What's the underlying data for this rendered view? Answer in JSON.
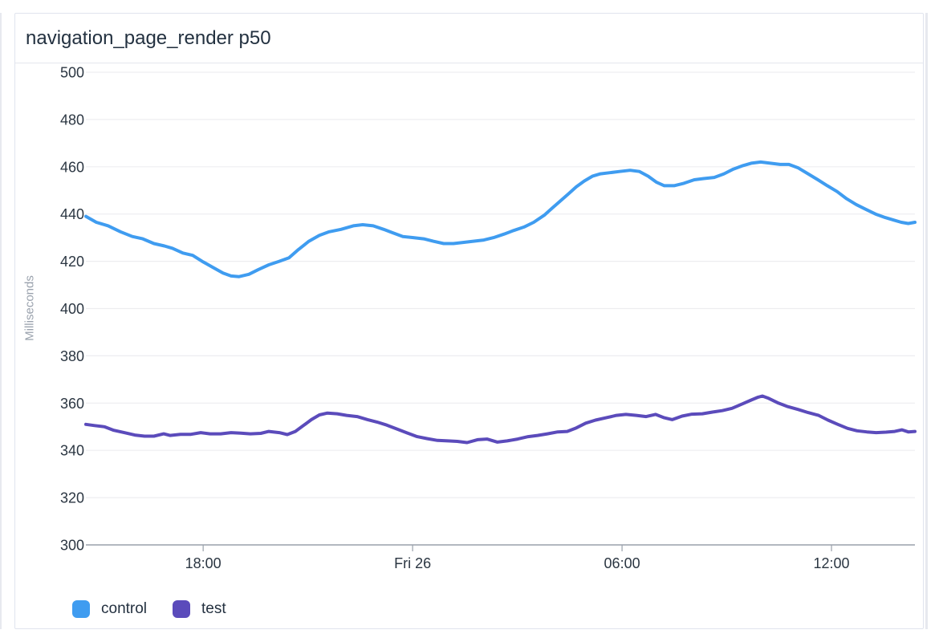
{
  "card": {
    "title": "navigation_page_render p50"
  },
  "legend": [
    {
      "label": "control",
      "color": "#3f9cf0"
    },
    {
      "label": "test",
      "color": "#5b4bbb"
    }
  ],
  "chart_data": {
    "type": "line",
    "title": "navigation_page_render p50",
    "xlabel": "",
    "ylabel": "Milliseconds",
    "ylim": [
      300,
      500
    ],
    "y_ticks": [
      300,
      320,
      340,
      360,
      380,
      400,
      420,
      440,
      460,
      480,
      500
    ],
    "x_range_hours": [
      0,
      23.75
    ],
    "x_ticks": [
      {
        "h": 3.36,
        "label": "18:00"
      },
      {
        "h": 9.36,
        "label": "Fri 26"
      },
      {
        "h": 15.36,
        "label": "06:00"
      },
      {
        "h": 21.36,
        "label": "12:00"
      }
    ],
    "grid": true,
    "legend_position": "bottom-left",
    "grid_color": "#ededf0",
    "axis_color": "#9aa1ab",
    "tick_color": "#2b3642",
    "series": [
      {
        "name": "control",
        "color": "#3f9cf0",
        "points": [
          [
            0,
            439
          ],
          [
            0.3,
            436.5
          ],
          [
            0.64,
            435
          ],
          [
            0.99,
            432.5
          ],
          [
            1.33,
            430.5
          ],
          [
            1.63,
            429.5
          ],
          [
            1.95,
            427.5
          ],
          [
            2.25,
            426.5
          ],
          [
            2.48,
            425.5
          ],
          [
            2.78,
            423.5
          ],
          [
            3.06,
            422.5
          ],
          [
            3.33,
            420
          ],
          [
            3.63,
            417.5
          ],
          [
            3.93,
            415
          ],
          [
            4.16,
            413.8
          ],
          [
            4.39,
            413.5
          ],
          [
            4.67,
            414.5
          ],
          [
            4.94,
            416.5
          ],
          [
            5.24,
            418.5
          ],
          [
            5.54,
            420
          ],
          [
            5.82,
            421.5
          ],
          [
            6.09,
            425
          ],
          [
            6.39,
            428.5
          ],
          [
            6.69,
            431
          ],
          [
            6.97,
            432.5
          ],
          [
            7.31,
            433.5
          ],
          [
            7.66,
            435
          ],
          [
            7.93,
            435.5
          ],
          [
            8.23,
            435
          ],
          [
            8.53,
            433.5
          ],
          [
            8.8,
            432
          ],
          [
            9.08,
            430.5
          ],
          [
            9.38,
            430
          ],
          [
            9.68,
            429.5
          ],
          [
            9.95,
            428.5
          ],
          [
            10.25,
            427.5
          ],
          [
            10.53,
            427.5
          ],
          [
            10.83,
            428
          ],
          [
            11.1,
            428.5
          ],
          [
            11.4,
            429
          ],
          [
            11.68,
            430
          ],
          [
            11.98,
            431.5
          ],
          [
            12.25,
            433
          ],
          [
            12.55,
            434.5
          ],
          [
            12.83,
            436.5
          ],
          [
            13.13,
            439.5
          ],
          [
            13.36,
            442.5
          ],
          [
            13.59,
            445.5
          ],
          [
            13.82,
            448.5
          ],
          [
            14.05,
            451.5
          ],
          [
            14.28,
            454
          ],
          [
            14.51,
            456
          ],
          [
            14.74,
            457
          ],
          [
            15.01,
            457.5
          ],
          [
            15.29,
            458
          ],
          [
            15.59,
            458.5
          ],
          [
            15.86,
            458
          ],
          [
            16.11,
            456
          ],
          [
            16.34,
            453.5
          ],
          [
            16.57,
            452
          ],
          [
            16.85,
            452
          ],
          [
            17.13,
            453
          ],
          [
            17.43,
            454.5
          ],
          [
            17.7,
            455
          ],
          [
            18,
            455.5
          ],
          [
            18.28,
            457
          ],
          [
            18.55,
            459
          ],
          [
            18.83,
            460.5
          ],
          [
            19.06,
            461.5
          ],
          [
            19.33,
            462
          ],
          [
            19.61,
            461.5
          ],
          [
            19.89,
            461
          ],
          [
            20.14,
            461
          ],
          [
            20.41,
            459.5
          ],
          [
            20.69,
            457
          ],
          [
            20.97,
            454.5
          ],
          [
            21.24,
            452
          ],
          [
            21.52,
            449.5
          ],
          [
            21.79,
            446.5
          ],
          [
            22.07,
            444
          ],
          [
            22.34,
            442
          ],
          [
            22.62,
            440
          ],
          [
            22.9,
            438.5
          ],
          [
            23.13,
            437.5
          ],
          [
            23.36,
            436.5
          ],
          [
            23.56,
            436
          ],
          [
            23.75,
            436.5
          ]
        ]
      },
      {
        "name": "test",
        "color": "#5b4bbb",
        "points": [
          [
            0,
            351
          ],
          [
            0.25,
            350.5
          ],
          [
            0.53,
            350
          ],
          [
            0.8,
            348.5
          ],
          [
            1.1,
            347.5
          ],
          [
            1.4,
            346.5
          ],
          [
            1.68,
            346
          ],
          [
            1.95,
            346
          ],
          [
            2.23,
            347
          ],
          [
            2.41,
            346.3
          ],
          [
            2.71,
            346.8
          ],
          [
            3.01,
            346.8
          ],
          [
            3.29,
            347.5
          ],
          [
            3.56,
            347
          ],
          [
            3.86,
            347
          ],
          [
            4.16,
            347.5
          ],
          [
            4.44,
            347.3
          ],
          [
            4.71,
            347
          ],
          [
            5.01,
            347.2
          ],
          [
            5.24,
            348
          ],
          [
            5.54,
            347.5
          ],
          [
            5.77,
            346.7
          ],
          [
            6,
            348
          ],
          [
            6.23,
            350.5
          ],
          [
            6.46,
            353
          ],
          [
            6.69,
            355
          ],
          [
            6.92,
            355.8
          ],
          [
            7.2,
            355.5
          ],
          [
            7.47,
            354.8
          ],
          [
            7.77,
            354.3
          ],
          [
            8.07,
            353
          ],
          [
            8.34,
            352
          ],
          [
            8.62,
            350.7
          ],
          [
            8.92,
            349
          ],
          [
            9.22,
            347.3
          ],
          [
            9.49,
            345.8
          ],
          [
            9.77,
            345
          ],
          [
            10.07,
            344.2
          ],
          [
            10.37,
            344
          ],
          [
            10.64,
            343.8
          ],
          [
            10.92,
            343.3
          ],
          [
            11.22,
            344.5
          ],
          [
            11.49,
            344.8
          ],
          [
            11.79,
            343.5
          ],
          [
            12.07,
            344
          ],
          [
            12.37,
            344.8
          ],
          [
            12.67,
            345.8
          ],
          [
            12.94,
            346.3
          ],
          [
            13.22,
            347
          ],
          [
            13.52,
            347.8
          ],
          [
            13.79,
            348
          ],
          [
            14.05,
            349.5
          ],
          [
            14.32,
            351.5
          ],
          [
            14.6,
            352.8
          ],
          [
            14.9,
            353.8
          ],
          [
            15.2,
            354.8
          ],
          [
            15.47,
            355.2
          ],
          [
            15.77,
            354.8
          ],
          [
            16.05,
            354.3
          ],
          [
            16.32,
            355.2
          ],
          [
            16.57,
            353.8
          ],
          [
            16.8,
            353
          ],
          [
            17.08,
            354.5
          ],
          [
            17.36,
            355.3
          ],
          [
            17.66,
            355.5
          ],
          [
            17.95,
            356.2
          ],
          [
            18.23,
            356.8
          ],
          [
            18.51,
            357.8
          ],
          [
            18.78,
            359.5
          ],
          [
            19.06,
            361.3
          ],
          [
            19.26,
            362.5
          ],
          [
            19.38,
            363
          ],
          [
            19.56,
            362
          ],
          [
            19.84,
            360
          ],
          [
            20.11,
            358.5
          ],
          [
            20.41,
            357.3
          ],
          [
            20.69,
            356
          ],
          [
            20.99,
            354.8
          ],
          [
            21.26,
            352.8
          ],
          [
            21.54,
            351
          ],
          [
            21.82,
            349.3
          ],
          [
            22.09,
            348.3
          ],
          [
            22.37,
            347.8
          ],
          [
            22.64,
            347.5
          ],
          [
            22.92,
            347.7
          ],
          [
            23.17,
            348
          ],
          [
            23.38,
            348.7
          ],
          [
            23.56,
            347.8
          ],
          [
            23.75,
            348
          ]
        ]
      }
    ]
  }
}
